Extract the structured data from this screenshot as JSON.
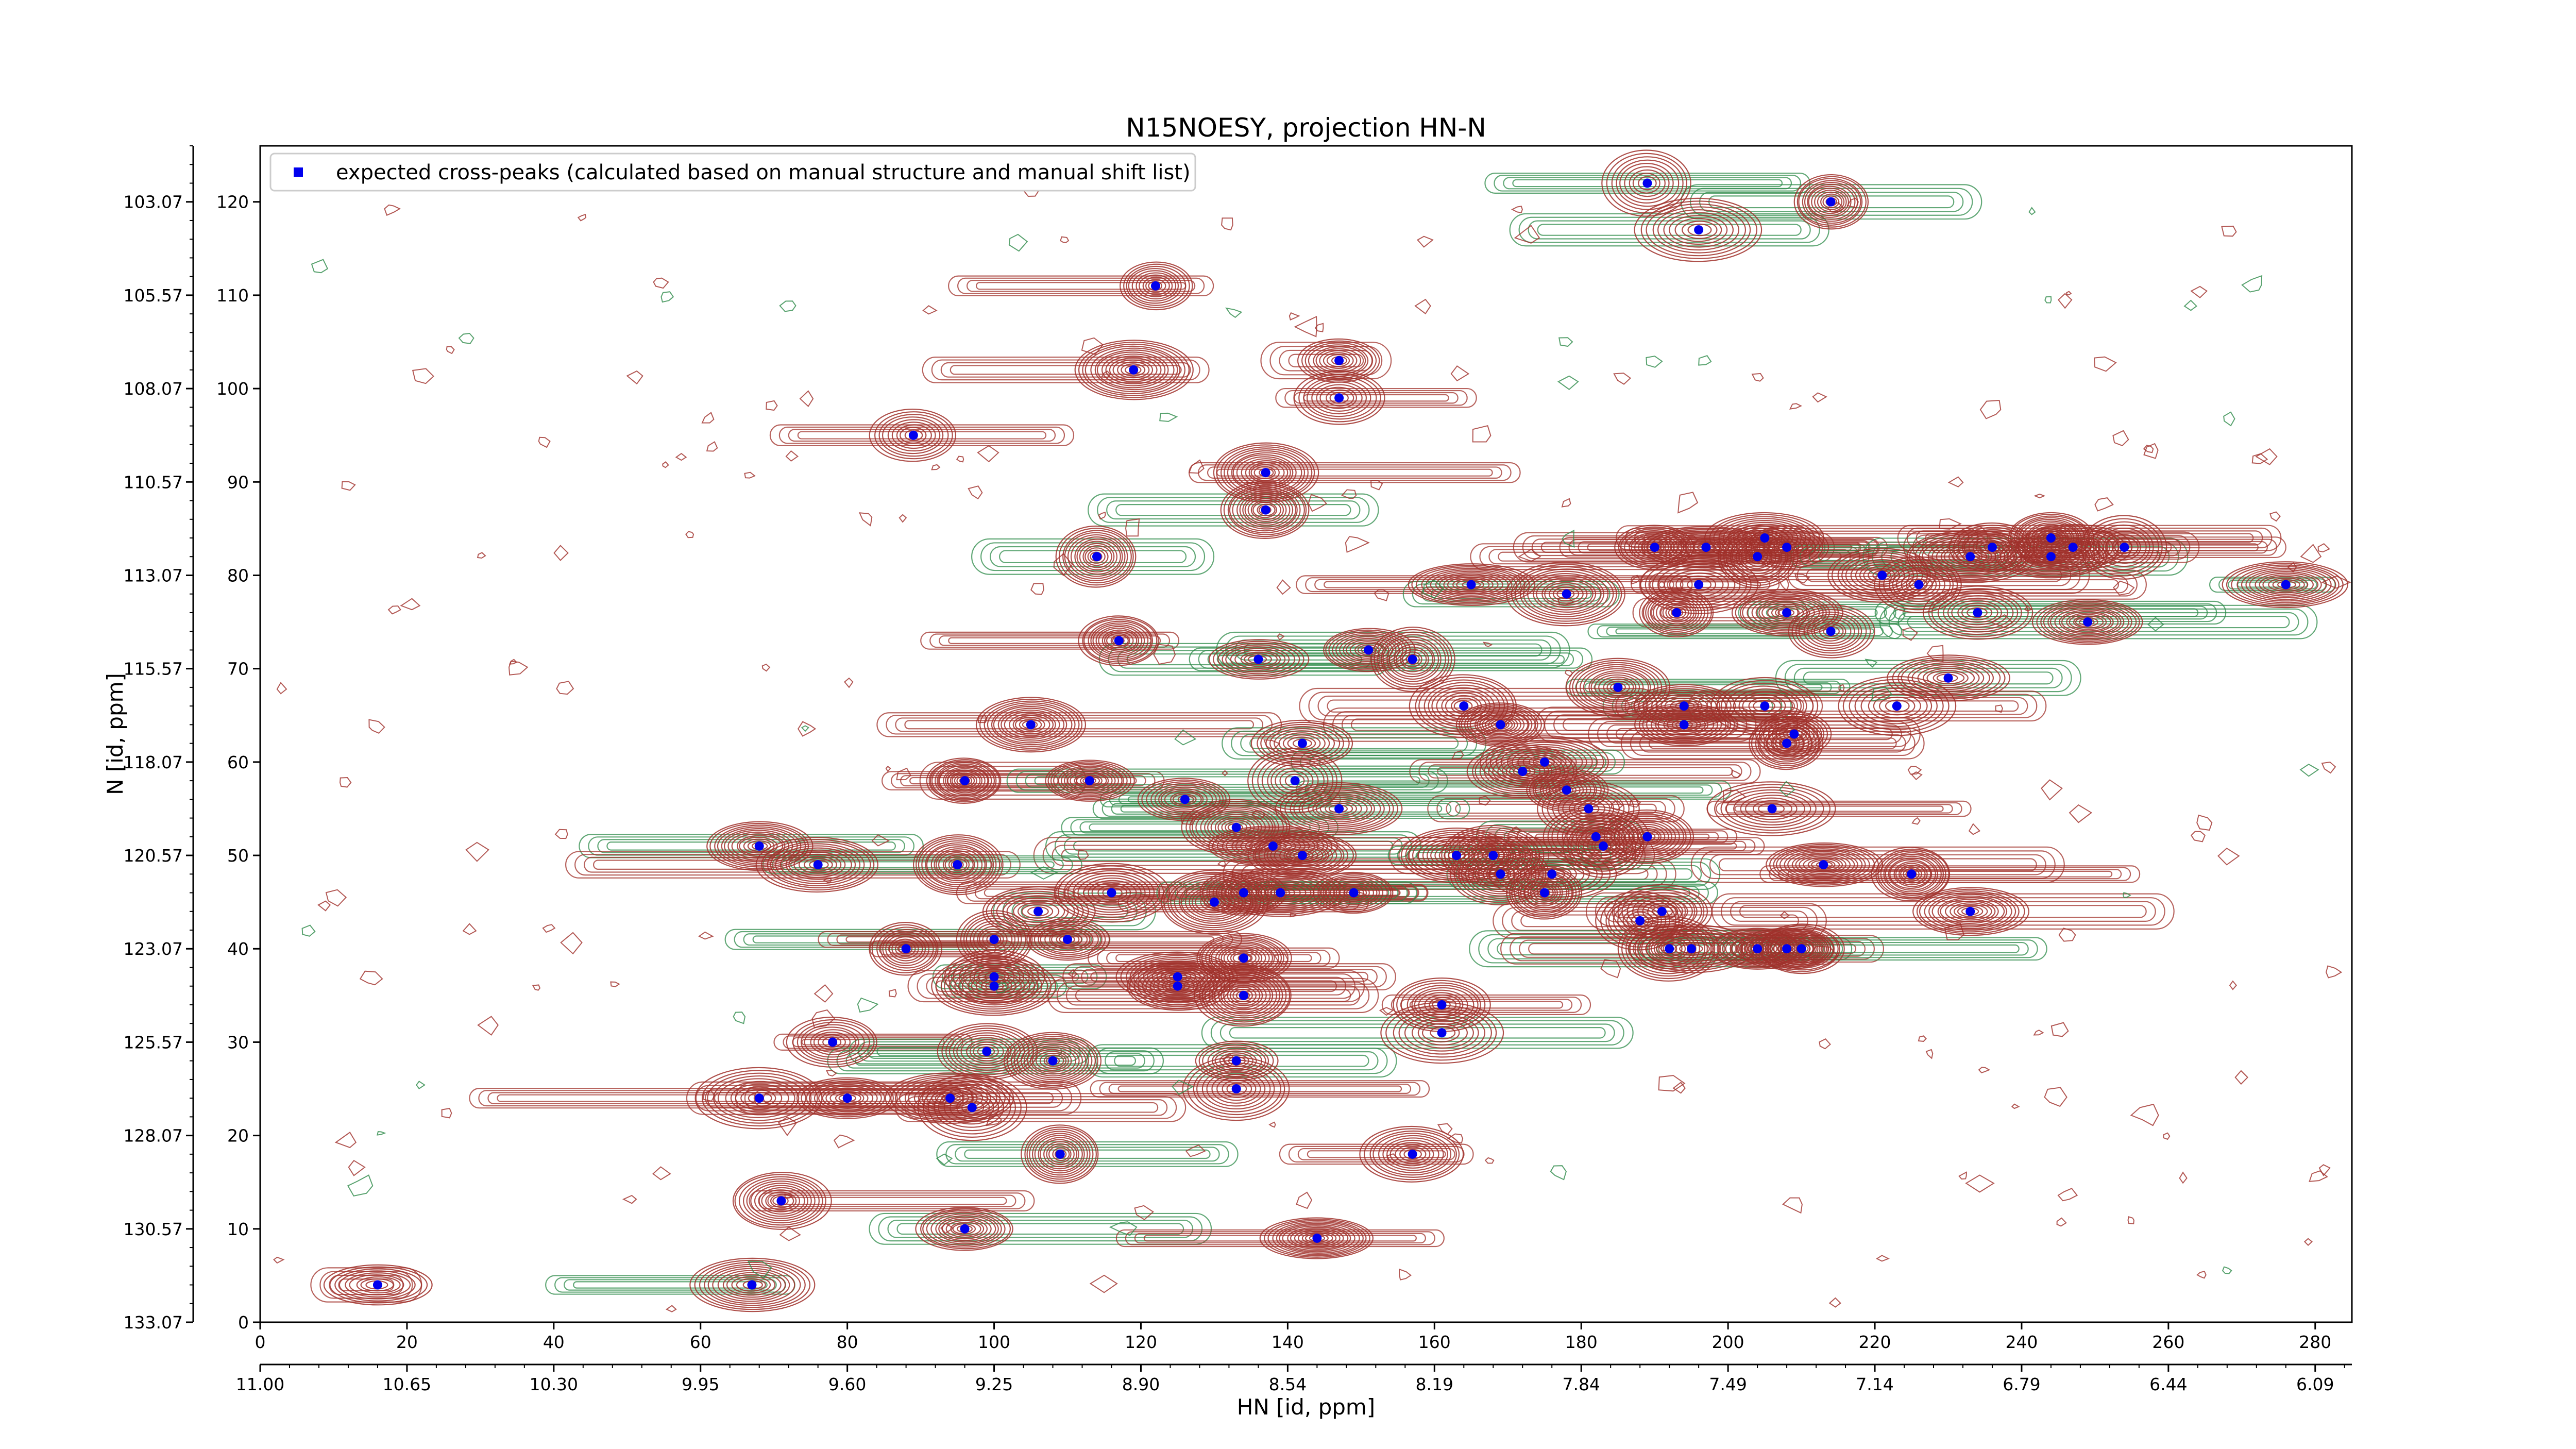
{
  "chart_data": {
    "type": "scatter",
    "title": "N15NOESY, projection HN-N",
    "xlabel": "HN [id, ppm]",
    "ylabel": "N [id, ppm]",
    "xlim": [
      0,
      285
    ],
    "ylim": [
      0,
      126
    ],
    "x_index_ticks": [
      "0",
      "20",
      "40",
      "60",
      "80",
      "100",
      "120",
      "140",
      "160",
      "180",
      "200",
      "220",
      "240",
      "260",
      "280"
    ],
    "x_ppm_ticks": [
      "11.00",
      "10.65",
      "10.30",
      "9.95",
      "9.60",
      "9.25",
      "8.90",
      "8.54",
      "8.19",
      "7.84",
      "7.49",
      "7.14",
      "6.79",
      "6.44",
      "6.09"
    ],
    "y_index_ticks": [
      "0",
      "10",
      "20",
      "30",
      "40",
      "50",
      "60",
      "70",
      "80",
      "90",
      "100",
      "110",
      "120"
    ],
    "y_ppm_ticks": [
      "133.07",
      "130.57",
      "128.07",
      "125.57",
      "123.07",
      "120.57",
      "118.07",
      "115.57",
      "113.07",
      "110.57",
      "108.07",
      "105.57",
      "103.07"
    ],
    "legend": {
      "position": "top-left",
      "entries": [
        "expected cross-peaks (calculated based on manual structure and manual shift list)"
      ]
    },
    "colors": {
      "marker": "#0000ee",
      "contour_positive": "#a0302a",
      "contour_negative": "#2e8b4a"
    },
    "series": [
      {
        "name": "expected cross-peaks (calculated based on manual structure and manual shift list)",
        "points": [
          [
            189,
            122
          ],
          [
            214,
            120
          ],
          [
            196,
            117
          ],
          [
            122,
            111
          ],
          [
            119,
            102
          ],
          [
            147,
            103
          ],
          [
            147,
            99
          ],
          [
            89,
            95
          ],
          [
            137,
            91
          ],
          [
            137,
            87
          ],
          [
            114,
            82
          ],
          [
            190,
            83
          ],
          [
            197,
            83
          ],
          [
            196,
            79
          ],
          [
            193,
            76
          ],
          [
            204,
            82
          ],
          [
            205,
            84
          ],
          [
            208,
            83
          ],
          [
            221,
            80
          ],
          [
            226,
            79
          ],
          [
            233,
            82
          ],
          [
            236,
            83
          ],
          [
            234,
            76
          ],
          [
            244,
            82
          ],
          [
            244,
            84
          ],
          [
            247,
            83
          ],
          [
            254,
            83
          ],
          [
            249,
            75
          ],
          [
            276,
            79
          ],
          [
            165,
            79
          ],
          [
            178,
            78
          ],
          [
            208,
            76
          ],
          [
            214,
            74
          ],
          [
            117,
            73
          ],
          [
            136,
            71
          ],
          [
            151,
            72
          ],
          [
            157,
            71
          ],
          [
            185,
            68
          ],
          [
            194,
            66
          ],
          [
            194,
            64
          ],
          [
            230,
            69
          ],
          [
            223,
            66
          ],
          [
            105,
            64
          ],
          [
            164,
            66
          ],
          [
            169,
            64
          ],
          [
            205,
            66
          ],
          [
            209,
            63
          ],
          [
            208,
            62
          ],
          [
            96,
            58
          ],
          [
            113,
            58
          ],
          [
            126,
            56
          ],
          [
            141,
            58
          ],
          [
            142,
            62
          ],
          [
            172,
            59
          ],
          [
            175,
            60
          ],
          [
            178,
            57
          ],
          [
            181,
            55
          ],
          [
            182,
            52
          ],
          [
            183,
            51
          ],
          [
            189,
            52
          ],
          [
            206,
            55
          ],
          [
            133,
            53
          ],
          [
            138,
            51
          ],
          [
            142,
            50
          ],
          [
            147,
            55
          ],
          [
            163,
            50
          ],
          [
            168,
            50
          ],
          [
            169,
            48
          ],
          [
            176,
            48
          ],
          [
            175,
            46
          ],
          [
            68,
            51
          ],
          [
            76,
            49
          ],
          [
            95,
            49
          ],
          [
            213,
            49
          ],
          [
            225,
            48
          ],
          [
            100,
            41
          ],
          [
            106,
            44
          ],
          [
            110,
            41
          ],
          [
            116,
            46
          ],
          [
            130,
            45
          ],
          [
            134,
            46
          ],
          [
            139,
            46
          ],
          [
            149,
            46
          ],
          [
            188,
            43
          ],
          [
            191,
            44
          ],
          [
            233,
            44
          ],
          [
            88,
            40
          ],
          [
            192,
            40
          ],
          [
            195,
            40
          ],
          [
            204,
            40
          ],
          [
            208,
            40
          ],
          [
            210,
            40
          ],
          [
            100,
            36
          ],
          [
            100,
            37
          ],
          [
            125,
            37
          ],
          [
            125,
            36
          ],
          [
            134,
            39
          ],
          [
            134,
            35
          ],
          [
            161,
            34
          ],
          [
            161,
            31
          ],
          [
            78,
            30
          ],
          [
            99,
            29
          ],
          [
            108,
            28
          ],
          [
            133,
            28
          ],
          [
            133,
            25
          ],
          [
            68,
            24
          ],
          [
            80,
            24
          ],
          [
            94,
            24
          ],
          [
            97,
            23
          ],
          [
            109,
            18
          ],
          [
            157,
            18
          ],
          [
            71,
            13
          ],
          [
            96,
            10
          ],
          [
            144,
            9
          ],
          [
            16,
            4
          ],
          [
            67,
            4
          ]
        ]
      }
    ]
  }
}
